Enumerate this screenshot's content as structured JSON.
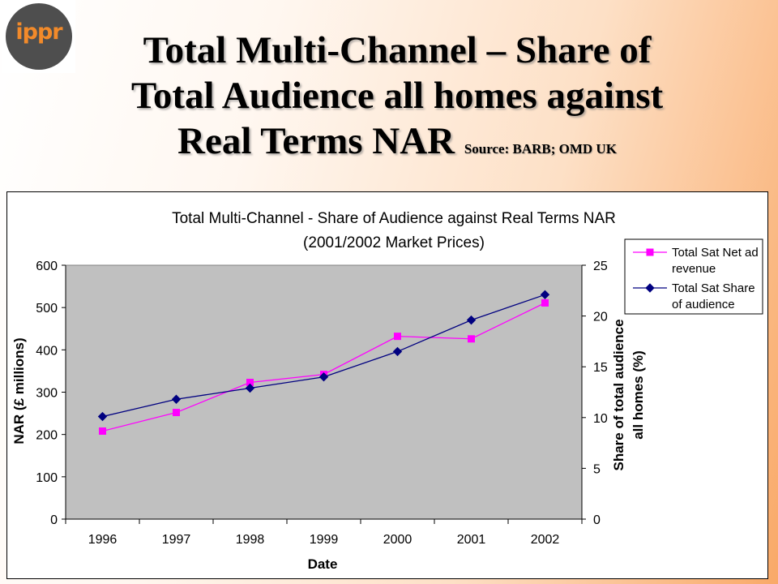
{
  "logo": {
    "text": "ippr"
  },
  "slide_title": {
    "line1": "Total Multi-Channel – Share of",
    "line2": "Total Audience all homes against",
    "line3": "Real Terms NAR",
    "source": "Source: BARB; OMD UK"
  },
  "chart_data": {
    "type": "line",
    "title": "Total Multi-Channel - Share of Audience against Real Terms NAR",
    "subtitle": "(2001/2002 Market Prices)",
    "xlabel": "Date",
    "ylabel": "NAR (£ millions)",
    "y2label_line1": "Share of total audience",
    "y2label_line2": "all homes (%)",
    "categories": [
      "1996",
      "1997",
      "1998",
      "1999",
      "2000",
      "2001",
      "2002"
    ],
    "ylim": [
      0,
      600
    ],
    "yticks": [
      0,
      100,
      200,
      300,
      400,
      500,
      600
    ],
    "y2lim": [
      0,
      25
    ],
    "y2ticks": [
      0,
      5,
      10,
      15,
      20,
      25
    ],
    "grid": false,
    "plot_background": "#c0c0c0",
    "legend_position": "right",
    "series": [
      {
        "name": "Total Sat Net ad revenue",
        "legend_lines": [
          "Total Sat Net ad",
          "revenue"
        ],
        "axis": "left",
        "color": "#ff00ff",
        "marker": "square",
        "values": [
          208,
          252,
          323,
          342,
          432,
          426,
          511
        ]
      },
      {
        "name": "Total Sat Share of audience",
        "legend_lines": [
          "Total Sat Share",
          "of audience"
        ],
        "axis": "right",
        "color": "#000080",
        "marker": "diamond",
        "values": [
          10.1,
          11.8,
          12.9,
          14.0,
          16.5,
          19.6,
          22.1
        ]
      }
    ]
  }
}
